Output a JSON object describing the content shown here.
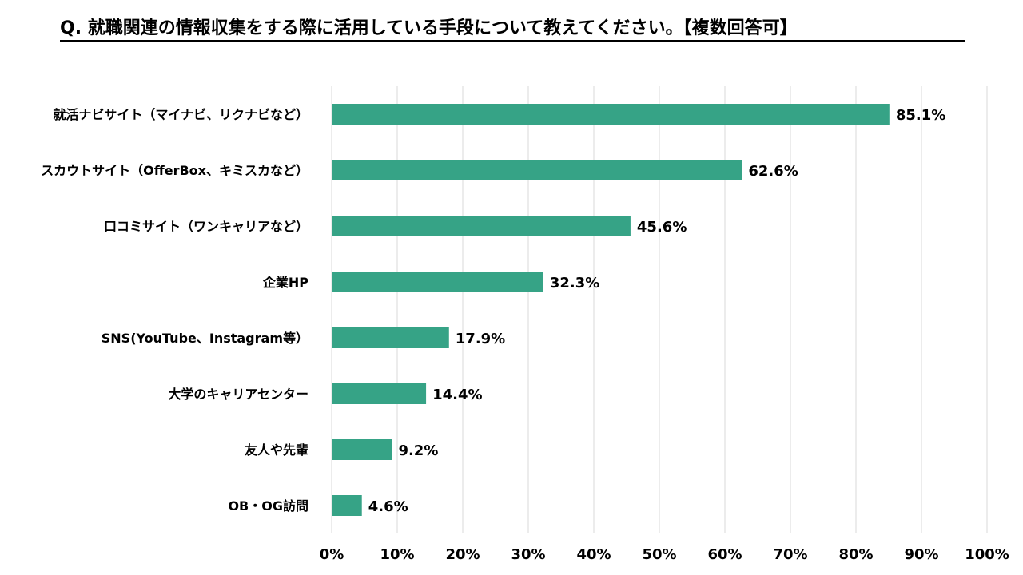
{
  "chart_data": {
    "type": "bar",
    "orientation": "horizontal",
    "title": "Q. 就職関連の情報収集をする際に活用している手段について教えてください。【複数回答可】",
    "categories": [
      "就活ナビサイト（マイナビ、リクナビなど）",
      "スカウトサイト（OfferBox、キミスカなど）",
      "口コミサイト（ワンキャリアなど）",
      "企業HP",
      "SNS(YouTube、Instagram等）",
      "大学のキャリアセンター",
      "友人や先輩",
      "OB・OG訪問"
    ],
    "values": [
      85.1,
      62.6,
      45.6,
      32.3,
      17.9,
      14.4,
      9.2,
      4.6
    ],
    "value_labels": [
      "85.1%",
      "62.6%",
      "45.6%",
      "32.3%",
      "17.9%",
      "14.4%",
      "9.2%",
      "4.6%"
    ],
    "xlim": [
      0,
      100
    ],
    "xticks": [
      "0%",
      "10%",
      "20%",
      "30%",
      "40%",
      "50%",
      "60%",
      "70%",
      "80%",
      "90%",
      "100%"
    ],
    "xlabel": "",
    "ylabel": "",
    "grid": true,
    "legend": "none",
    "bar_color": "#36a386"
  }
}
